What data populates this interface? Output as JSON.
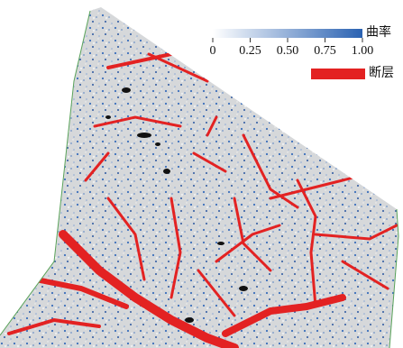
{
  "legend": {
    "colorbar": {
      "title": "曲率",
      "range": [
        0,
        1
      ],
      "ticks": [
        0,
        {
          "value": 0.25,
          "label": "0.25"
        },
        {
          "value": 0.5,
          "label": "0.50"
        },
        {
          "value": 0.75,
          "label": "0.75"
        },
        {
          "value": 1,
          "label": "1.00"
        }
      ],
      "colors": [
        "#ffffff",
        "#2a62b2"
      ]
    },
    "fault": {
      "label": "断层",
      "color": "#e32222"
    }
  }
}
